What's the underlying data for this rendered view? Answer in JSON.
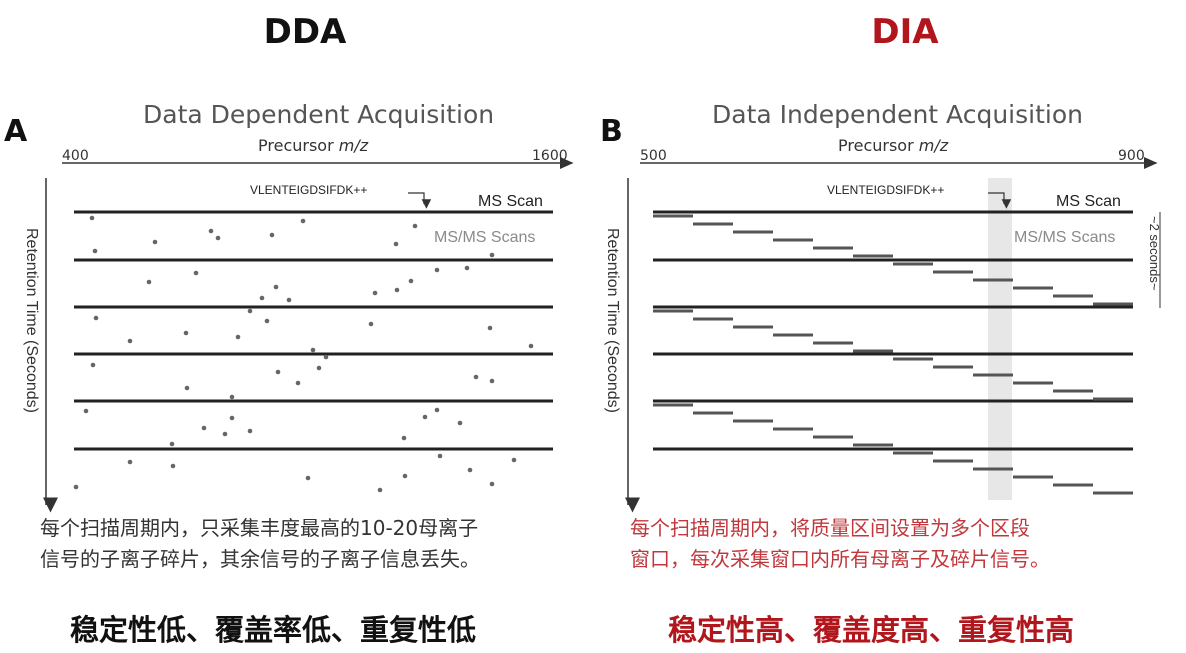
{
  "titles": {
    "dda": "DDA",
    "dia": "DIA"
  },
  "panel_a": {
    "letter": "A",
    "heading": "Data Dependent Acquisition",
    "x_axis_label": "Precursor m/z",
    "x_min": "400",
    "x_max": "1600",
    "y_axis_label": "Retention Time (Seconds)",
    "peptide_label": "VLENTEIGDSIFDK++",
    "ms_scan_label": "MS Scan",
    "msms_label": "MS/MS Scans"
  },
  "panel_b": {
    "letter": "B",
    "heading": "Data Independent Acquisition",
    "x_axis_label": "Precursor m/z",
    "x_min": "500",
    "x_max": "900",
    "y_axis_label": "Retention Time (Seconds)",
    "peptide_label": "VLENTEIGDSIFDK++",
    "ms_scan_label": "MS Scan",
    "msms_label": "MS/MS Scans",
    "cycle_label": "~2 seconds~"
  },
  "desc_dda": {
    "line1": "每个扫描周期内，只采集丰度最高的10-20母离子",
    "line2": "信号的子离子碎片，其余信号的子离子信息丢失。"
  },
  "desc_dia": {
    "line1": "每个扫描周期内，将质量区间设置为多个区段",
    "line2": "窗口，每次采集窗口内所有母离子及碎片信号。"
  },
  "summary": {
    "dda": "稳定性低、覆盖率低、重复性低",
    "dia": "稳定性高、覆盖度高、重复性高"
  },
  "colors": {
    "dia_accent": "#b1161c",
    "dia_text": "#c0383c",
    "line": "#222222",
    "gray_text": "#8a8a8a"
  }
}
